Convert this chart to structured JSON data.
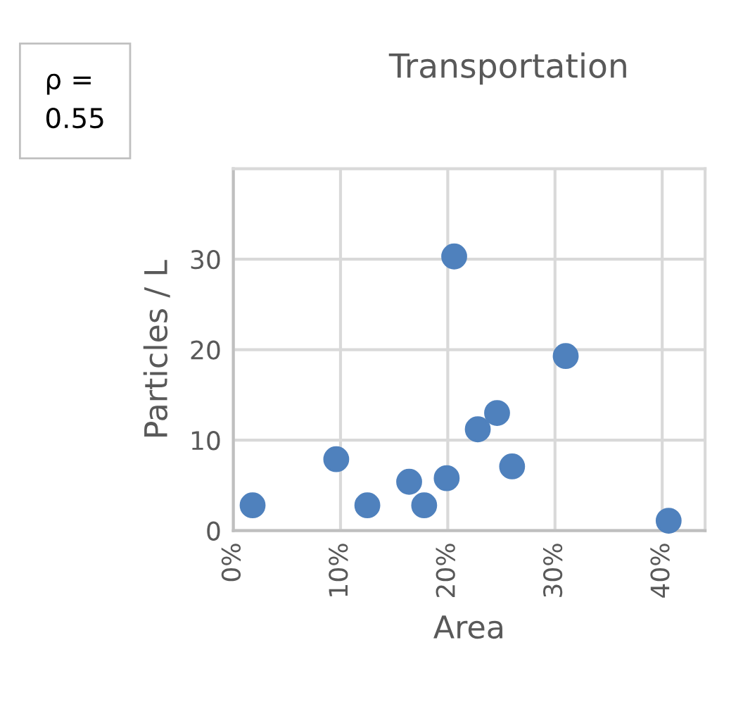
{
  "chart_data": {
    "type": "scatter",
    "title": "Transportation",
    "xlabel": "Area",
    "ylabel": "Particles / L",
    "annotations": [
      "ρ =\n0.55"
    ],
    "x": [
      1.8,
      9.6,
      12.5,
      16.4,
      17.8,
      19.9,
      20.6,
      22.8,
      24.6,
      26.0,
      31.0,
      40.6
    ],
    "series": [
      {
        "color": "#4f81bd",
        "values": [
          2.8,
          7.9,
          2.8,
          5.4,
          2.8,
          5.8,
          30.3,
          11.2,
          13.0,
          7.1,
          19.3,
          1.1
        ]
      }
    ],
    "xlim": [
      0,
      44
    ],
    "ylim": [
      0,
      40
    ],
    "xticks": [
      {
        "value": 0,
        "label": "0%"
      },
      {
        "value": 10,
        "label": "10%"
      },
      {
        "value": 20,
        "label": "20%"
      },
      {
        "value": 30,
        "label": "30%"
      },
      {
        "value": 40,
        "label": "40%"
      }
    ],
    "yticks": [
      0,
      10,
      20,
      30
    ],
    "grid": true,
    "marker": "circle",
    "legend": false
  }
}
